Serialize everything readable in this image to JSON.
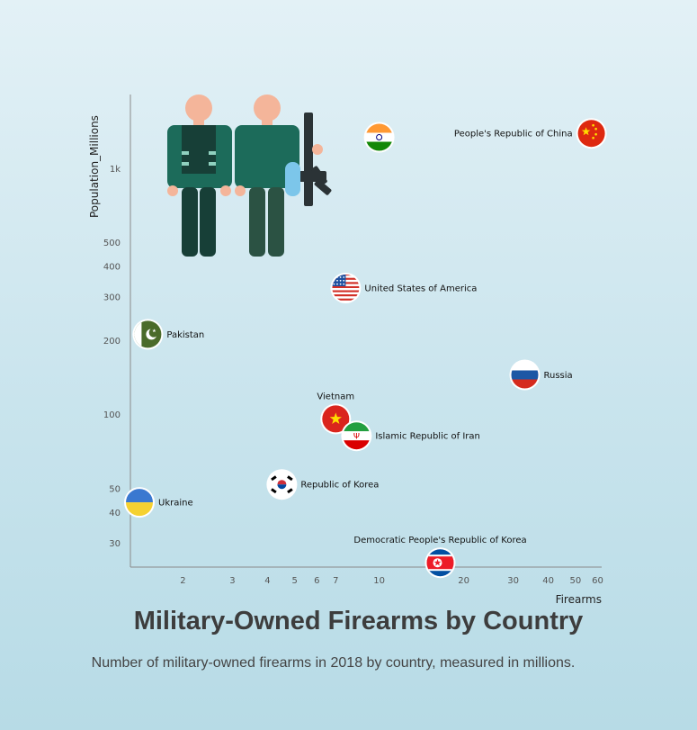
{
  "chart_data": {
    "type": "scatter",
    "title": "Military-Owned Firearms by Country",
    "subtitle": "Number of military-owned firearms in 2018 by country, measured in millions.",
    "xlabel": "Firearms",
    "ylabel": "Population_Millions",
    "x_scale": "log",
    "y_scale": "log",
    "xlim": [
      1.3,
      62
    ],
    "ylim": [
      24,
      2000
    ],
    "x_ticks": [
      {
        "value": 2,
        "label": "2"
      },
      {
        "value": 3,
        "label": "3"
      },
      {
        "value": 4,
        "label": "4"
      },
      {
        "value": 5,
        "label": "5"
      },
      {
        "value": 6,
        "label": "6"
      },
      {
        "value": 7,
        "label": "7"
      },
      {
        "value": 10,
        "label": "10"
      },
      {
        "value": 20,
        "label": "20"
      },
      {
        "value": 30,
        "label": "30"
      },
      {
        "value": 40,
        "label": "40"
      },
      {
        "value": 50,
        "label": "50"
      },
      {
        "value": 60,
        "label": "60"
      }
    ],
    "y_ticks": [
      {
        "value": 30,
        "label": "30"
      },
      {
        "value": 40,
        "label": "40"
      },
      {
        "value": 50,
        "label": "50"
      },
      {
        "value": 100,
        "label": "100"
      },
      {
        "value": 200,
        "label": "200"
      },
      {
        "value": 300,
        "label": "300"
      },
      {
        "value": 400,
        "label": "400"
      },
      {
        "value": 500,
        "label": "500"
      },
      {
        "value": 1000,
        "label": "1k"
      }
    ],
    "points": [
      {
        "label": "People's Republic of China",
        "x": 57,
        "y": 1390,
        "flag": "china",
        "label_pos": "left"
      },
      {
        "label": "",
        "x": 10,
        "y": 1340,
        "flag": "india",
        "label_pos": "none"
      },
      {
        "label": "United States of America",
        "x": 7.6,
        "y": 327,
        "flag": "usa",
        "label_pos": "right"
      },
      {
        "label": "Pakistan",
        "x": 1.5,
        "y": 212,
        "flag": "pakistan",
        "label_pos": "right"
      },
      {
        "label": "Russia",
        "x": 33,
        "y": 145,
        "flag": "russia",
        "label_pos": "right"
      },
      {
        "label": "Vietnam",
        "x": 7,
        "y": 96,
        "flag": "vietnam",
        "label_pos": "top"
      },
      {
        "label": "Islamic Republic of Iran",
        "x": 8.3,
        "y": 82,
        "flag": "iran",
        "label_pos": "right"
      },
      {
        "label": "Republic of Korea",
        "x": 4.5,
        "y": 52,
        "flag": "south-korea",
        "label_pos": "right"
      },
      {
        "label": "Ukraine",
        "x": 1.4,
        "y": 44,
        "flag": "ukraine",
        "label_pos": "right"
      },
      {
        "label": "Democratic People's Republic of Korea",
        "x": 16.5,
        "y": 25,
        "flag": "north-korea",
        "label_pos": "top"
      }
    ],
    "illustration": "soldiers-with-rifle-icon",
    "colors": {
      "background_top": "#e3f1f6",
      "background_bottom": "#b7dbe6",
      "axis": "#8a8a8a",
      "soldier_green": "#1c6b5a"
    }
  }
}
